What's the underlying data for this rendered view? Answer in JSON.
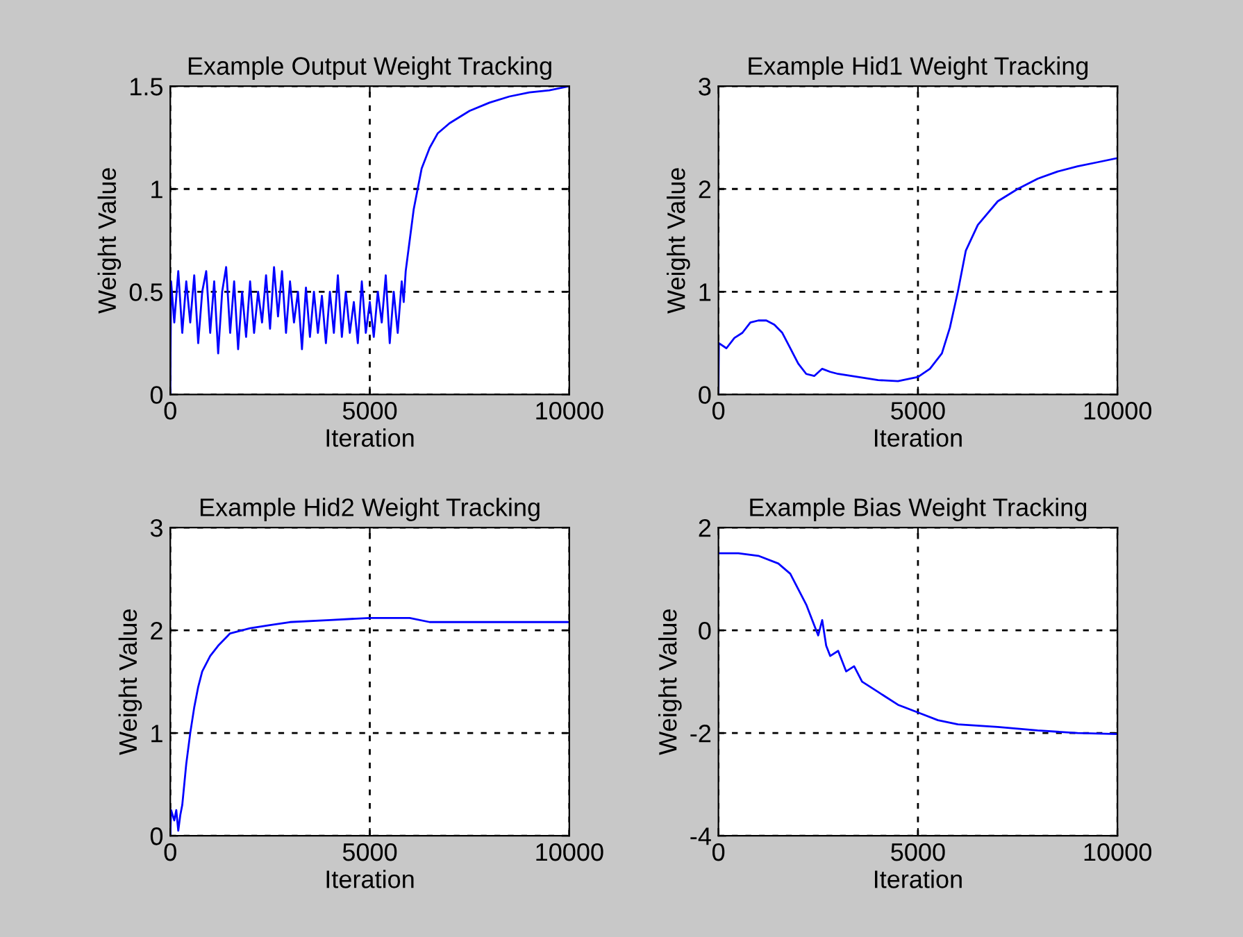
{
  "chart_data": [
    {
      "type": "line",
      "title": "Example Output Weight Tracking",
      "xlabel": "Iteration",
      "ylabel": "Weight Value",
      "xlim": [
        0,
        10000
      ],
      "ylim": [
        0,
        1.5
      ],
      "xticks": [
        0,
        5000,
        10000
      ],
      "yticks": [
        0,
        0.5,
        1,
        1.5
      ],
      "grid": true,
      "series": [
        {
          "color": "#0000ff",
          "x": [
            0,
            20,
            100,
            200,
            300,
            400,
            500,
            600,
            700,
            800,
            900,
            1000,
            1100,
            1200,
            1300,
            1400,
            1500,
            1600,
            1700,
            1800,
            1900,
            2000,
            2100,
            2200,
            2300,
            2400,
            2500,
            2600,
            2700,
            2800,
            2900,
            3000,
            3100,
            3200,
            3300,
            3400,
            3500,
            3600,
            3700,
            3800,
            3900,
            4000,
            4100,
            4200,
            4300,
            4400,
            4500,
            4600,
            4700,
            4800,
            4900,
            5000,
            5100,
            5200,
            5300,
            5400,
            5500,
            5600,
            5700,
            5800,
            5850,
            5900,
            6000,
            6100,
            6200,
            6300,
            6500,
            6700,
            7000,
            7500,
            8000,
            8500,
            9000,
            9500,
            10000
          ],
          "values": [
            0,
            0.55,
            0.35,
            0.6,
            0.3,
            0.55,
            0.35,
            0.58,
            0.25,
            0.5,
            0.6,
            0.3,
            0.55,
            0.2,
            0.5,
            0.62,
            0.3,
            0.55,
            0.22,
            0.5,
            0.28,
            0.55,
            0.3,
            0.5,
            0.35,
            0.58,
            0.32,
            0.62,
            0.38,
            0.6,
            0.3,
            0.55,
            0.35,
            0.5,
            0.22,
            0.52,
            0.28,
            0.5,
            0.3,
            0.48,
            0.25,
            0.5,
            0.3,
            0.58,
            0.28,
            0.5,
            0.3,
            0.45,
            0.25,
            0.55,
            0.3,
            0.45,
            0.28,
            0.5,
            0.35,
            0.58,
            0.25,
            0.5,
            0.3,
            0.55,
            0.45,
            0.6,
            0.75,
            0.9,
            1.0,
            1.1,
            1.2,
            1.27,
            1.32,
            1.38,
            1.42,
            1.45,
            1.47,
            1.48,
            1.5
          ]
        }
      ]
    },
    {
      "type": "line",
      "title": "Example Hid1 Weight Tracking",
      "xlabel": "Iteration",
      "ylabel": "Weight Value",
      "xlim": [
        0,
        10000
      ],
      "ylim": [
        0,
        3
      ],
      "xticks": [
        0,
        5000,
        10000
      ],
      "yticks": [
        0,
        1,
        2,
        3
      ],
      "grid": true,
      "series": [
        {
          "color": "#0000ff",
          "x": [
            0,
            10,
            200,
            400,
            600,
            800,
            1000,
            1200,
            1400,
            1600,
            1800,
            2000,
            2200,
            2400,
            2600,
            2800,
            3000,
            3500,
            4000,
            4500,
            5000,
            5300,
            5600,
            5800,
            6000,
            6200,
            6500,
            7000,
            7500,
            8000,
            8500,
            9000,
            9500,
            10000
          ],
          "values": [
            0,
            0.5,
            0.45,
            0.55,
            0.6,
            0.7,
            0.72,
            0.72,
            0.68,
            0.6,
            0.45,
            0.3,
            0.2,
            0.18,
            0.25,
            0.22,
            0.2,
            0.17,
            0.14,
            0.13,
            0.17,
            0.25,
            0.4,
            0.65,
            1.0,
            1.4,
            1.65,
            1.88,
            2.0,
            2.1,
            2.17,
            2.22,
            2.26,
            2.3
          ]
        }
      ]
    },
    {
      "type": "line",
      "title": "Example Hid2 Weight Tracking",
      "xlabel": "Iteration",
      "ylabel": "Weight Value",
      "xlim": [
        0,
        10000
      ],
      "ylim": [
        0,
        3
      ],
      "xticks": [
        0,
        5000,
        10000
      ],
      "yticks": [
        0,
        1,
        2,
        3
      ],
      "grid": true,
      "series": [
        {
          "color": "#0000ff",
          "x": [
            0,
            20,
            100,
            150,
            200,
            250,
            300,
            400,
            500,
            600,
            700,
            800,
            1000,
            1200,
            1500,
            2000,
            2500,
            3000,
            4000,
            5000,
            6000,
            6500,
            8000,
            10000
          ],
          "values": [
            0,
            0.25,
            0.15,
            0.25,
            0.05,
            0.2,
            0.3,
            0.7,
            1.0,
            1.25,
            1.45,
            1.6,
            1.75,
            1.85,
            1.97,
            2.02,
            2.05,
            2.08,
            2.1,
            2.12,
            2.12,
            2.08,
            2.08,
            2.08
          ]
        }
      ]
    },
    {
      "type": "line",
      "title": "Example Bias Weight Tracking",
      "xlabel": "Iteration",
      "ylabel": "Weight Value",
      "xlim": [
        0,
        10000
      ],
      "ylim": [
        -4,
        2
      ],
      "xticks": [
        0,
        5000,
        10000
      ],
      "yticks": [
        -4,
        -2,
        0,
        2
      ],
      "grid": true,
      "series": [
        {
          "color": "#0000ff",
          "x": [
            10,
            500,
            1000,
            1500,
            1800,
            2000,
            2200,
            2400,
            2500,
            2600,
            2700,
            2800,
            3000,
            3200,
            3400,
            3600,
            4000,
            4500,
            5000,
            5500,
            6000,
            7000,
            8000,
            9000,
            10000
          ],
          "values": [
            1.5,
            1.5,
            1.45,
            1.3,
            1.1,
            0.8,
            0.5,
            0.1,
            -0.1,
            0.2,
            -0.3,
            -0.5,
            -0.4,
            -0.8,
            -0.7,
            -1.0,
            -1.2,
            -1.45,
            -1.6,
            -1.75,
            -1.83,
            -1.88,
            -1.95,
            -2.0,
            -2.02
          ]
        }
      ]
    }
  ]
}
